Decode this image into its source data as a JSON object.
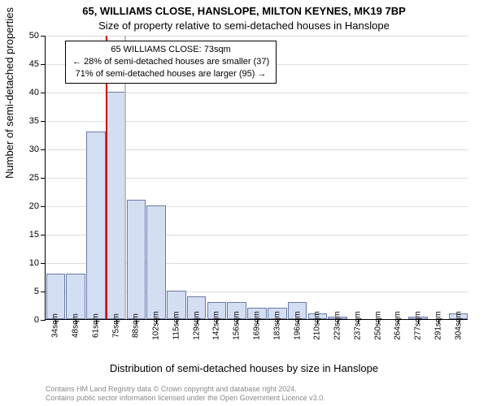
{
  "chart": {
    "type": "bar",
    "title_main": "65, WILLIAMS CLOSE, HANSLOPE, MILTON KEYNES, MK19 7BP",
    "title_sub": "Size of property relative to semi-detached houses in Hanslope",
    "ylabel": "Number of semi-detached properties",
    "xlabel": "Distribution of semi-detached houses by size in Hanslope",
    "ylim": [
      0,
      50
    ],
    "ytick_step": 5,
    "bar_fill": "#d4def2",
    "bar_stroke": "#6a7aa6",
    "grid_color": "#dcdcdc",
    "background_color": "#ffffff",
    "vline_color_red": "#cc0000",
    "vline_color_gray": "#c0c0c0",
    "bar_width_ratio": 0.95,
    "title_fontsize": 13,
    "label_fontsize": 13,
    "tick_fontsize": 11,
    "xtick_fontsize": 10,
    "annot_fontsize": 11,
    "series": {
      "x_labels": [
        "34sqm",
        "48sqm",
        "61sqm",
        "75sqm",
        "88sqm",
        "102sqm",
        "115sqm",
        "129sqm",
        "142sqm",
        "156sqm",
        "169sqm",
        "183sqm",
        "196sqm",
        "210sqm",
        "223sqm",
        "237sqm",
        "250sqm",
        "264sqm",
        "277sqm",
        "291sqm",
        "304sqm"
      ],
      "values": [
        8,
        8,
        33,
        40,
        21,
        20,
        5,
        4,
        3,
        3,
        2,
        2,
        3,
        1,
        0.5,
        0,
        0,
        0,
        0.5,
        0,
        1
      ]
    },
    "annotation": {
      "line1": "65 WILLIAMS CLOSE: 73sqm",
      "line2": "← 28% of semi-detached houses are smaller (37)",
      "line3": "71% of semi-detached houses are larger (95) →",
      "vline_index": 3
    }
  },
  "copyright": {
    "line1": "Contains HM Land Registry data © Crown copyright and database right 2024.",
    "line2": "Contains public sector information licensed under the Open Government Licence v3.0."
  }
}
